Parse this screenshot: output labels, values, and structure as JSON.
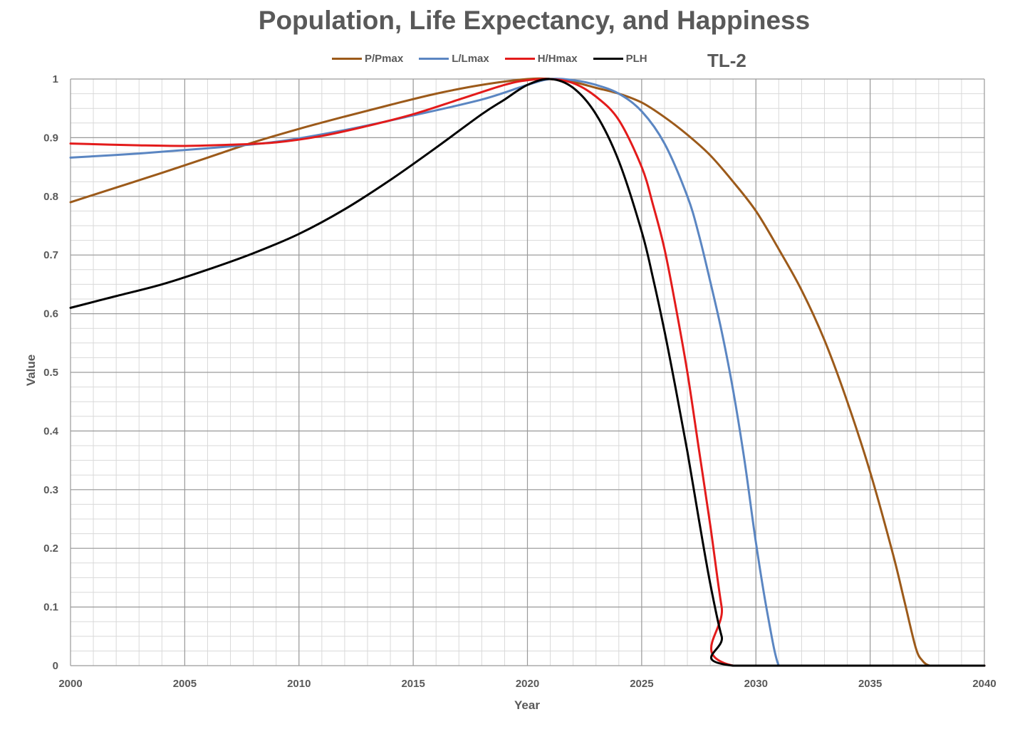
{
  "chart_data": {
    "type": "line",
    "title": "Population, Life Expectancy, and Happiness",
    "annotation": "TL-2",
    "xlabel": "Year",
    "ylabel": "Value",
    "xlim": [
      2000,
      2040
    ],
    "ylim": [
      0,
      1
    ],
    "x_ticks": [
      "2000",
      "2005",
      "2010",
      "2015",
      "2020",
      "2025",
      "2030",
      "2035",
      "2040"
    ],
    "y_ticks": [
      "0",
      "0.1",
      "0.2",
      "0.3",
      "0.4",
      "0.5",
      "0.6",
      "0.7",
      "0.8",
      "0.9",
      "1"
    ],
    "grid": true,
    "legend_position": "top",
    "series": [
      {
        "name": "P/Pmax",
        "color": "#9C5A1A",
        "x": [
          2000,
          2002,
          2004,
          2006,
          2008,
          2010,
          2012,
          2014,
          2016,
          2018,
          2020,
          2021,
          2022,
          2023,
          2024,
          2025,
          2026,
          2027,
          2028,
          2029,
          2030,
          2031,
          2032,
          2033,
          2034,
          2035,
          2036,
          2036.5,
          2037,
          2037.3,
          2037.6,
          2038,
          2040
        ],
        "y": [
          0.79,
          0.815,
          0.84,
          0.866,
          0.892,
          0.915,
          0.936,
          0.956,
          0.975,
          0.99,
          1.0,
          1.0,
          0.995,
          0.985,
          0.975,
          0.96,
          0.935,
          0.905,
          0.87,
          0.825,
          0.775,
          0.71,
          0.64,
          0.555,
          0.45,
          0.33,
          0.19,
          0.11,
          0.03,
          0.008,
          0.0,
          0.0,
          0.0
        ]
      },
      {
        "name": "L/Lmax",
        "color": "#5B86C2",
        "x": [
          2000,
          2003,
          2006,
          2009,
          2012,
          2015,
          2018,
          2020,
          2021,
          2022,
          2023,
          2024,
          2025,
          2026,
          2027,
          2027.5,
          2028,
          2028.5,
          2029,
          2029.5,
          2030,
          2030.5,
          2031,
          2031.5,
          2040
        ],
        "y": [
          0.866,
          0.873,
          0.882,
          0.893,
          0.913,
          0.938,
          0.965,
          0.99,
          1.0,
          0.998,
          0.99,
          0.975,
          0.945,
          0.89,
          0.8,
          0.735,
          0.655,
          0.57,
          0.47,
          0.35,
          0.21,
          0.09,
          0.0,
          0.0,
          0.0
        ]
      },
      {
        "name": "H/Hmax",
        "color": "#E31B1B",
        "x": [
          2000,
          2003,
          2005,
          2007,
          2009,
          2011,
          2013,
          2015,
          2017,
          2019,
          2020,
          2021,
          2022,
          2023,
          2024,
          2025,
          2025.5,
          2026,
          2026.5,
          2027,
          2027.5,
          2028,
          2028.5,
          2029,
          2040
        ],
        "y": [
          0.89,
          0.887,
          0.886,
          0.888,
          0.892,
          0.903,
          0.92,
          0.94,
          0.965,
          0.99,
          0.998,
          1.0,
          0.993,
          0.97,
          0.93,
          0.85,
          0.785,
          0.71,
          0.61,
          0.5,
          0.37,
          0.24,
          0.1,
          0.0,
          0.0
        ]
      },
      {
        "name": "PLH",
        "color": "#000000",
        "x": [
          2000,
          2002,
          2004,
          2006,
          2008,
          2010,
          2012,
          2014,
          2016,
          2018,
          2019,
          2020,
          2021,
          2022,
          2023,
          2024,
          2025,
          2025.5,
          2026,
          2026.5,
          2027,
          2027.5,
          2028,
          2028.5,
          2029,
          2040
        ],
        "y": [
          0.61,
          0.63,
          0.65,
          0.675,
          0.703,
          0.736,
          0.778,
          0.828,
          0.883,
          0.94,
          0.965,
          0.99,
          1.0,
          0.985,
          0.94,
          0.86,
          0.74,
          0.66,
          0.57,
          0.47,
          0.365,
          0.25,
          0.14,
          0.05,
          0.0,
          0.0
        ]
      }
    ]
  }
}
